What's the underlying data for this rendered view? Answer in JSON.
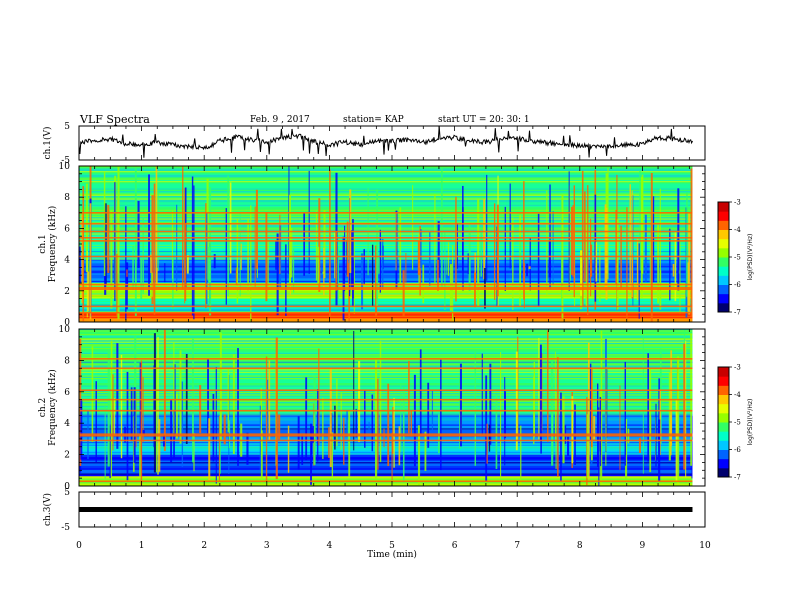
{
  "header": {
    "title": "VLF Spectra",
    "date": "Feb. 9 , 2017",
    "station": "station= KAP",
    "start": "start UT =  20: 30: 1"
  },
  "colors": {
    "colormap": [
      "#00006e",
      "#0000ff",
      "#0064ff",
      "#00c8ff",
      "#00ffc8",
      "#32ff64",
      "#96ff00",
      "#e6ff00",
      "#ffc800",
      "#ff6400",
      "#ff0000",
      "#c80000"
    ]
  },
  "chart_data": [
    {
      "type": "line",
      "name_panel": "ch.1 waveform",
      "ylabel": "ch.1(V)",
      "ylim": [
        -5,
        5
      ],
      "y_ticks": [
        "5",
        "-5"
      ],
      "xlim": [
        0,
        10
      ],
      "x": [
        0,
        0.25,
        0.5,
        0.75,
        1,
        1.25,
        1.5,
        1.75,
        2,
        2.25,
        2.5,
        2.75,
        3,
        3.25,
        3.5,
        3.75,
        4,
        4.25,
        4.5,
        4.75,
        5,
        5.25,
        5.5,
        5.75,
        6,
        6.25,
        6.5,
        6.75,
        7,
        7.25,
        7.5,
        7.75,
        8,
        8.25,
        8.5,
        8.75,
        9,
        9.25,
        9.5,
        9.8
      ],
      "y": [
        0,
        0.8,
        1.2,
        -0.3,
        -0.5,
        0.2,
        -0.6,
        -1.0,
        -1.6,
        0.6,
        1.8,
        1.0,
        0.2,
        1.5,
        2.2,
        0.4,
        -0.6,
        0.3,
        -0.5,
        0.4,
        0.6,
        1.0,
        0.2,
        1.4,
        1.6,
        0.8,
        0.2,
        1.1,
        1.3,
        0.5,
        0.0,
        -0.4,
        -0.8,
        -1.1,
        -0.9,
        -0.6,
        -0.3,
        1.6,
        1.2,
        0.6
      ]
    },
    {
      "type": "heatmap",
      "name_panel": "ch.1 spectrogram",
      "ylabel": "ch.1\nFrequency (kHz)",
      "ylim": [
        0,
        10
      ],
      "y_ticks": [
        "0",
        "2",
        "4",
        "6",
        "8",
        "10"
      ],
      "xlim": [
        0,
        10
      ],
      "colorbar": {
        "label": "log(PSD)(V²/Hz)",
        "range": [
          -7,
          -3
        ],
        "ticks": [
          "-3",
          "-4",
          "-5",
          "-6",
          "-7"
        ]
      },
      "bands_khz": [
        {
          "f0": 0.0,
          "f1": 0.6,
          "level": 0.75
        },
        {
          "f0": 0.6,
          "f1": 1.5,
          "level": 0.35
        },
        {
          "f0": 1.5,
          "f1": 2.5,
          "level": 0.5
        },
        {
          "f0": 2.5,
          "f1": 4.0,
          "level": 0.18
        },
        {
          "f0": 4.0,
          "f1": 5.5,
          "level": 0.4
        },
        {
          "f0": 5.5,
          "f1": 10.0,
          "level": 0.45
        }
      ],
      "lines_khz": [
        0.6,
        1.0,
        2.1,
        2.2,
        2.4,
        4.2,
        5.2,
        5.4,
        5.8,
        6.3,
        7.0
      ]
    },
    {
      "type": "heatmap",
      "name_panel": "ch.2 spectrogram",
      "ylabel": "ch.2\nFrequency (kHz)",
      "ylim": [
        0,
        10
      ],
      "y_ticks": [
        "0",
        "2",
        "4",
        "6",
        "8",
        "10"
      ],
      "xlim": [
        0,
        10
      ],
      "colorbar": {
        "label": "log(PSD)(V²/Hz)",
        "range": [
          -7,
          -3
        ],
        "ticks": [
          "-3",
          "-4",
          "-5",
          "-6",
          "-7"
        ]
      },
      "bands_khz": [
        {
          "f0": 0.0,
          "f1": 0.6,
          "level": 0.5
        },
        {
          "f0": 0.6,
          "f1": 2.0,
          "level": 0.15
        },
        {
          "f0": 2.0,
          "f1": 3.0,
          "level": 0.3
        },
        {
          "f0": 3.0,
          "f1": 4.5,
          "level": 0.2
        },
        {
          "f0": 4.5,
          "f1": 10.0,
          "level": 0.42
        }
      ],
      "lines_khz": [
        0.3,
        2.9,
        3.2,
        3.3,
        4.8,
        5.5,
        6.1,
        7.5,
        8.1
      ]
    },
    {
      "type": "line",
      "name_panel": "ch.3 waveform",
      "ylabel": "ch.3(V)",
      "ylim": [
        -5,
        5
      ],
      "y_ticks": [
        "5",
        "-5"
      ],
      "xlim": [
        0,
        10
      ],
      "x": [
        0,
        9.8
      ],
      "y": [
        0,
        0
      ]
    }
  ],
  "xaxis": {
    "label": "Time (min)",
    "ticks": [
      "0",
      "1",
      "2",
      "3",
      "4",
      "5",
      "6",
      "7",
      "8",
      "9",
      "10"
    ]
  }
}
